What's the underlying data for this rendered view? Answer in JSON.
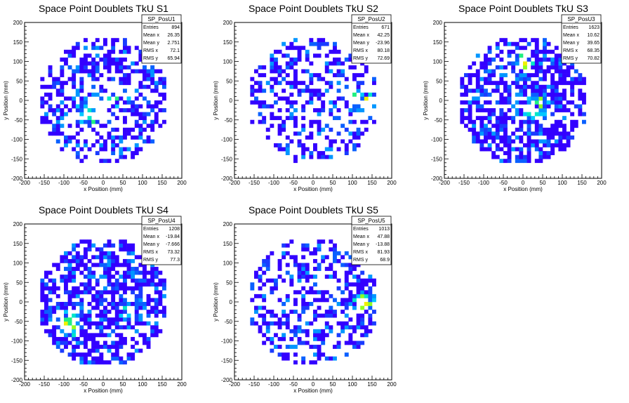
{
  "chart_data": [
    {
      "type": "heatmap",
      "title": "Space Point Doublets TkU S1",
      "xlabel": "x Position (mm)",
      "ylabel": "y Position (mm)",
      "xlim": [
        -200,
        200
      ],
      "ylim": [
        -200,
        200
      ],
      "ticks": [
        -200,
        -150,
        -100,
        -50,
        0,
        50,
        100,
        150,
        200
      ],
      "stats": {
        "name": "SP_PosU1",
        "rows": [
          {
            "label": "Entries",
            "value": "894"
          },
          {
            "label": "Mean x",
            "value": "26.35"
          },
          {
            "label": "Mean y",
            "value": "2.751"
          },
          {
            "label": "RMS x",
            "value": "72.1"
          },
          {
            "label": "RMS y",
            "value": "65.94"
          }
        ]
      },
      "entries": 894,
      "mean_x": 26.35,
      "mean_y": 2.751,
      "rms_x": 72.1,
      "rms_y": 65.94,
      "radius": 165,
      "seed": 11,
      "occupancy": 0.45,
      "hotspots": [
        {
          "x": -30,
          "y": -25,
          "w": 3
        },
        {
          "x": 40,
          "y": 10,
          "w": 2
        }
      ]
    },
    {
      "type": "heatmap",
      "title": "Space Point Doublets TkU S2",
      "xlabel": "x Position (mm)",
      "ylabel": "y Position (mm)",
      "xlim": [
        -200,
        200
      ],
      "ylim": [
        -200,
        200
      ],
      "ticks": [
        -200,
        -150,
        -100,
        -50,
        0,
        50,
        100,
        150,
        200
      ],
      "stats": {
        "name": "SP_PosU2",
        "rows": [
          {
            "label": "Entries",
            "value": "671"
          },
          {
            "label": "Mean x",
            "value": "42.25"
          },
          {
            "label": "Mean y",
            "value": "-23.96"
          },
          {
            "label": "RMS x",
            "value": "80.18"
          },
          {
            "label": "RMS y",
            "value": "72.69"
          }
        ]
      },
      "entries": 671,
      "mean_x": 42.25,
      "mean_y": -23.96,
      "rms_x": 80.18,
      "rms_y": 72.69,
      "radius": 165,
      "seed": 23,
      "occupancy": 0.38,
      "hotspots": [
        {
          "x": 125,
          "y": 0,
          "w": 3
        },
        {
          "x": 70,
          "y": -60,
          "w": 1
        }
      ]
    },
    {
      "type": "heatmap",
      "title": "Space Point Doublets TkU S3",
      "xlabel": "x Position (mm)",
      "ylabel": "y Position (mm)",
      "xlim": [
        -200,
        200
      ],
      "ylim": [
        -200,
        200
      ],
      "ticks": [
        -200,
        -150,
        -100,
        -50,
        0,
        50,
        100,
        150,
        200
      ],
      "stats": {
        "name": "SP_PosU3",
        "rows": [
          {
            "label": "Entries",
            "value": "1623"
          },
          {
            "label": "Mean x",
            "value": "10.62"
          },
          {
            "label": "Mean y",
            "value": "39.65"
          },
          {
            "label": "RMS x",
            "value": "68.35"
          },
          {
            "label": "RMS y",
            "value": "70.82"
          }
        ]
      },
      "entries": 1623,
      "mean_x": 10.62,
      "mean_y": 39.65,
      "rms_x": 68.35,
      "rms_y": 70.82,
      "radius": 165,
      "seed": 37,
      "occupancy": 0.62,
      "hotspots": [
        {
          "x": 40,
          "y": -20,
          "w": 3
        },
        {
          "x": 0,
          "y": 90,
          "w": 2
        }
      ]
    },
    {
      "type": "heatmap",
      "title": "Space Point Doublets TkU S4",
      "xlabel": "x Position (mm)",
      "ylabel": "y Position (mm)",
      "xlim": [
        -200,
        200
      ],
      "ylim": [
        -200,
        200
      ],
      "ticks": [
        -200,
        -150,
        -100,
        -50,
        0,
        50,
        100,
        150,
        200
      ],
      "stats": {
        "name": "SP_PosU4",
        "rows": [
          {
            "label": "Entries",
            "value": "1208"
          },
          {
            "label": "Mean x",
            "value": "-19.84"
          },
          {
            "label": "Mean y",
            "value": "-7.666"
          },
          {
            "label": "RMS x",
            "value": "73.32"
          },
          {
            "label": "RMS y",
            "value": "77.3"
          }
        ]
      },
      "entries": 1208,
      "mean_x": -19.84,
      "mean_y": -7.666,
      "rms_x": 73.32,
      "rms_y": 77.3,
      "radius": 165,
      "seed": 53,
      "occupancy": 0.6,
      "hotspots": [
        {
          "x": -85,
          "y": -55,
          "w": 3
        },
        {
          "x": 70,
          "y": -10,
          "w": 1
        }
      ]
    },
    {
      "type": "heatmap",
      "title": "Space Point Doublets TkU S5",
      "xlabel": "x Position (mm)",
      "ylabel": "y Position (mm)",
      "xlim": [
        -200,
        200
      ],
      "ylim": [
        -200,
        200
      ],
      "ticks": [
        -200,
        -150,
        -100,
        -50,
        0,
        50,
        100,
        150,
        200
      ],
      "stats": {
        "name": "SP_PosU5",
        "rows": [
          {
            "label": "Entries",
            "value": "1013"
          },
          {
            "label": "Mean x",
            "value": "47.88"
          },
          {
            "label": "Mean y",
            "value": "-13.88"
          },
          {
            "label": "RMS x",
            "value": "81.93"
          },
          {
            "label": "RMS y",
            "value": "68.9"
          }
        ]
      },
      "entries": 1013,
      "mean_x": 47.88,
      "mean_y": -13.88,
      "rms_x": 81.93,
      "rms_y": 68.9,
      "radius": 165,
      "seed": 71,
      "occupancy": 0.42,
      "hotspots": [
        {
          "x": 130,
          "y": 0,
          "w": 3
        }
      ]
    }
  ],
  "palette": [
    "#3300ff",
    "#1a3cff",
    "#0a60ff",
    "#0096ff",
    "#00c8ff",
    "#00e6c8",
    "#20f080",
    "#90ff20",
    "#f0f000",
    "#ff8000",
    "#ff1000"
  ]
}
